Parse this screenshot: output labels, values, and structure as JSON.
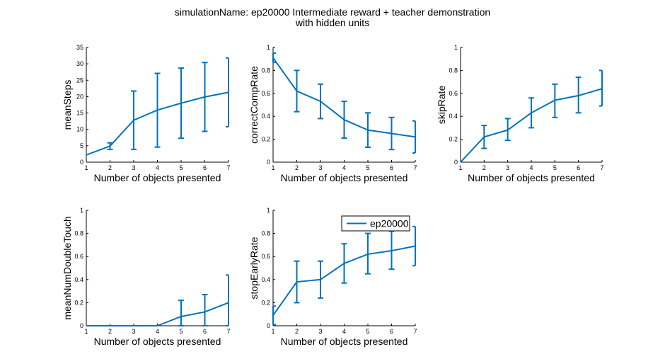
{
  "figure": {
    "title_line1": "simulationName: ep20000  Intermediate reward + teacher demonstration",
    "title_line2": "with hidden units"
  },
  "colors": {
    "series": "#0072bd",
    "axes": "#000000",
    "background": "#ffffff"
  },
  "legend": {
    "label": "ep20000",
    "subplot": 4,
    "placement": "top-right"
  },
  "chart_data": [
    {
      "type": "line",
      "xlabel": "Number of objects presented",
      "ylabel": "meanSteps",
      "xlim": [
        1,
        7
      ],
      "ylim": [
        0,
        35
      ],
      "xticks": [
        1,
        2,
        3,
        4,
        5,
        6,
        7
      ],
      "yticks": [
        0,
        5,
        10,
        15,
        20,
        25,
        30,
        35
      ],
      "ytick_labels": [
        "0",
        "5",
        "10",
        "15",
        "20",
        "25",
        "30",
        "35"
      ],
      "grid": false,
      "series": [
        {
          "name": "ep20000",
          "x": [
            1,
            2,
            3,
            4,
            5,
            6,
            7
          ],
          "y": [
            2.2,
            4.9,
            12.8,
            15.9,
            18.0,
            19.9,
            21.3
          ],
          "err_low": [
            2.2,
            3.9,
            3.9,
            4.6,
            7.3,
            9.4,
            10.8
          ],
          "err_high": [
            2.2,
            5.9,
            21.7,
            27.1,
            28.7,
            30.4,
            31.8
          ]
        }
      ]
    },
    {
      "type": "line",
      "xlabel": "Number of objects presented",
      "ylabel": "correctCompRate",
      "xlim": [
        1,
        7
      ],
      "ylim": [
        0,
        1
      ],
      "xticks": [
        1,
        2,
        3,
        4,
        5,
        6,
        7
      ],
      "yticks": [
        0,
        0.2,
        0.4,
        0.6,
        0.8,
        1
      ],
      "ytick_labels": [
        "0",
        "0.2",
        "0.4",
        "0.6",
        "0.8",
        "1"
      ],
      "grid": false,
      "series": [
        {
          "name": "ep20000",
          "x": [
            1,
            2,
            3,
            4,
            5,
            6,
            7
          ],
          "y": [
            0.91,
            0.62,
            0.53,
            0.37,
            0.28,
            0.25,
            0.22
          ],
          "err_low": [
            0.87,
            0.44,
            0.38,
            0.21,
            0.13,
            0.11,
            0.08
          ],
          "err_high": [
            0.95,
            0.8,
            0.68,
            0.53,
            0.43,
            0.39,
            0.36
          ]
        }
      ]
    },
    {
      "type": "line",
      "xlabel": "Number of objects presented",
      "ylabel": "skipRate",
      "xlim": [
        1,
        7
      ],
      "ylim": [
        0,
        1
      ],
      "xticks": [
        1,
        2,
        3,
        4,
        5,
        6,
        7
      ],
      "yticks": [
        0,
        0.2,
        0.4,
        0.6,
        0.8,
        1
      ],
      "ytick_labels": [
        "0",
        "0.2",
        "0.4",
        "0.6",
        "0.8",
        "1"
      ],
      "grid": false,
      "series": [
        {
          "name": "ep20000",
          "x": [
            1,
            2,
            3,
            4,
            5,
            6,
            7
          ],
          "y": [
            0.0,
            0.22,
            0.28,
            0.43,
            0.54,
            0.58,
            0.64
          ],
          "err_low": [
            0.0,
            0.12,
            0.19,
            0.3,
            0.39,
            0.43,
            0.49
          ],
          "err_high": [
            0.0,
            0.32,
            0.38,
            0.56,
            0.68,
            0.74,
            0.8
          ]
        }
      ]
    },
    {
      "type": "line",
      "xlabel": "Number of objects presented",
      "ylabel": "meanNumDoubleTouch",
      "xlim": [
        1,
        7
      ],
      "ylim": [
        0,
        1
      ],
      "xticks": [
        1,
        2,
        3,
        4,
        5,
        6,
        7
      ],
      "yticks": [
        0,
        0.2,
        0.4,
        0.6,
        0.8,
        1
      ],
      "ytick_labels": [
        "0",
        "0.2",
        "0.4",
        "0.6",
        "0.8",
        "1"
      ],
      "grid": false,
      "series": [
        {
          "name": "ep20000",
          "x": [
            1,
            2,
            3,
            4,
            5,
            6,
            7
          ],
          "y": [
            0.0,
            0.0,
            0.0,
            0.0,
            0.08,
            0.12,
            0.2
          ],
          "err_low": [
            0.0,
            0.0,
            0.0,
            0.0,
            0.0,
            0.0,
            0.0
          ],
          "err_high": [
            0.0,
            0.0,
            0.0,
            0.0,
            0.22,
            0.27,
            0.44
          ]
        }
      ]
    },
    {
      "type": "line",
      "xlabel": "Number of objects presented",
      "ylabel": "stopEarlyRate",
      "xlim": [
        1,
        7
      ],
      "ylim": [
        0,
        1
      ],
      "xticks": [
        1,
        2,
        3,
        4,
        5,
        6,
        7
      ],
      "yticks": [
        0,
        0.2,
        0.4,
        0.6,
        0.8,
        1
      ],
      "ytick_labels": [
        "0",
        "0.2",
        "0.4",
        "0.6",
        "0.8",
        "1"
      ],
      "grid": false,
      "series": [
        {
          "name": "ep20000",
          "x": [
            1,
            2,
            3,
            4,
            5,
            6,
            7
          ],
          "y": [
            0.09,
            0.38,
            0.4,
            0.54,
            0.62,
            0.65,
            0.69
          ],
          "err_low": [
            0.01,
            0.2,
            0.24,
            0.37,
            0.45,
            0.49,
            0.52
          ],
          "err_high": [
            0.17,
            0.56,
            0.56,
            0.71,
            0.8,
            0.82,
            0.86
          ]
        }
      ]
    }
  ]
}
